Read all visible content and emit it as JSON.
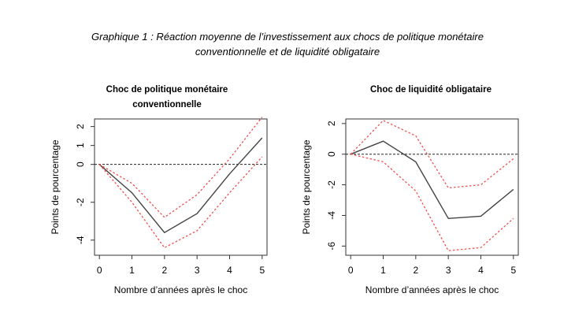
{
  "figure": {
    "title_line1": "Graphique 1 : Réaction moyenne de l’investissement aux chocs de politique monétaire",
    "title_line2": "conventionnelle et de liquidité obligataire"
  },
  "colors": {
    "response": "#444444",
    "band": "#f0504f",
    "zero_line": "#222222"
  },
  "chart_data": [
    {
      "type": "line",
      "title": "Choc de politique  monétaire conventionnelle",
      "title_lines": [
        "Choc de politique  monétaire",
        "conventionnelle"
      ],
      "xlabel": "Nombre d’années après le choc",
      "ylabel": "Points de pourcentage",
      "x": [
        0,
        1,
        2,
        3,
        4,
        5
      ],
      "x_ticks": [
        "0",
        "1",
        "2",
        "3",
        "4",
        "5"
      ],
      "y_ticks": [
        "-4",
        "-2",
        "0",
        "1",
        "2"
      ],
      "y_tick_values": [
        -4,
        -2,
        0,
        1,
        2
      ],
      "xlim": [
        -0.15,
        5.15
      ],
      "ylim": [
        -4.8,
        2.4
      ],
      "zero_line": true,
      "series": [
        {
          "role": "response",
          "style": "solid",
          "values": [
            0,
            -1.5,
            -3.6,
            -2.6,
            -0.5,
            1.4
          ]
        },
        {
          "role": "upper-band",
          "style": "dotted",
          "values": [
            0,
            -1.0,
            -2.8,
            -1.6,
            0.3,
            2.5
          ]
        },
        {
          "role": "lower-band",
          "style": "dotted",
          "values": [
            0,
            -2.0,
            -4.4,
            -3.5,
            -1.5,
            0.4
          ]
        }
      ]
    },
    {
      "type": "line",
      "title": "Choc de liquidité  obligataire",
      "title_lines": [
        "Choc de liquidité  obligataire"
      ],
      "xlabel": "Nombre d’années après le choc",
      "ylabel": "Points de pourcentage",
      "x": [
        0,
        1,
        2,
        3,
        4,
        5
      ],
      "x_ticks": [
        "0",
        "1",
        "2",
        "3",
        "4",
        "5"
      ],
      "y_ticks": [
        "-6",
        "-4",
        "-2",
        "0",
        "2"
      ],
      "y_tick_values": [
        -6,
        -4,
        -2,
        0,
        2
      ],
      "xlim": [
        -0.15,
        5.15
      ],
      "ylim": [
        -6.6,
        2.3
      ],
      "zero_line": true,
      "series": [
        {
          "role": "response",
          "style": "solid",
          "values": [
            0,
            0.85,
            -0.5,
            -4.2,
            -4.05,
            -2.3
          ]
        },
        {
          "role": "upper-band",
          "style": "dotted",
          "values": [
            0,
            2.2,
            1.2,
            -2.2,
            -2.0,
            -0.3
          ]
        },
        {
          "role": "lower-band",
          "style": "dotted",
          "values": [
            0,
            -0.5,
            -2.4,
            -6.3,
            -6.1,
            -4.2
          ]
        }
      ]
    }
  ]
}
